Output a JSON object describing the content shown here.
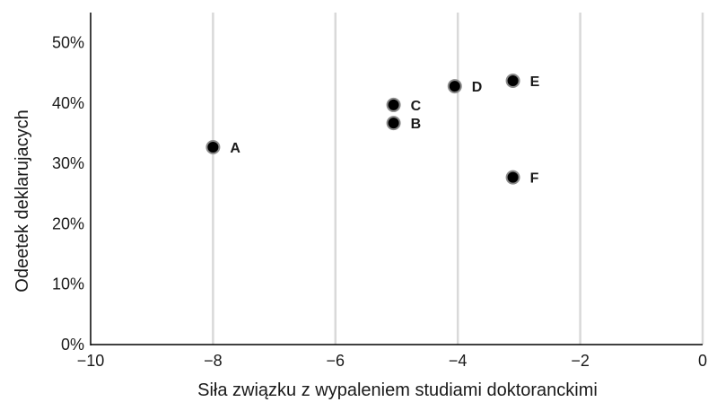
{
  "chart_data": {
    "type": "scatter",
    "xlabel": "Siła związku z wypaleniem studiami doktoranckimi",
    "ylabel": "Odeetek deklarujacych",
    "xlim": [
      -10,
      0
    ],
    "ylim": [
      0,
      0.55
    ],
    "x_ticks": [
      -10,
      -8,
      -6,
      -4,
      -2,
      0
    ],
    "x_tick_labels": [
      "−10",
      "−8",
      "−6",
      "−4",
      "−2",
      "0"
    ],
    "y_ticks": [
      0,
      0.1,
      0.2,
      0.3,
      0.4,
      0.5
    ],
    "y_tick_labels": [
      "0%",
      "10%",
      "20%",
      "30%",
      "40%",
      "50%"
    ],
    "grid": "vertical",
    "points": [
      {
        "label": "A",
        "x": -8.0,
        "y": 0.327
      },
      {
        "label": "B",
        "x": -5.05,
        "y": 0.367
      },
      {
        "label": "C",
        "x": -5.05,
        "y": 0.397
      },
      {
        "label": "D",
        "x": -4.05,
        "y": 0.428
      },
      {
        "label": "E",
        "x": -3.1,
        "y": 0.437
      },
      {
        "label": "F",
        "x": -3.1,
        "y": 0.277
      }
    ],
    "colors": {
      "marker": "#000000",
      "marker_edge": "#8a8a8a",
      "grid": "#d9d9d9",
      "axis": "#000000"
    }
  }
}
